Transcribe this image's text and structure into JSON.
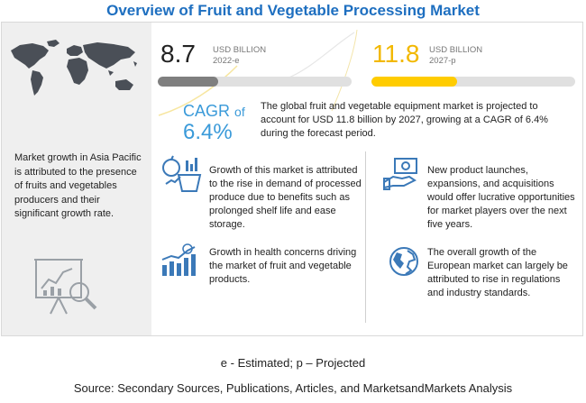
{
  "title": "Overview of Fruit and Vegetable Processing Market",
  "market_2022": {
    "value": "8.7",
    "unit": "USD BILLION",
    "year": "2022-e",
    "fill_fraction": 0.31
  },
  "market_2027": {
    "value": "11.8",
    "unit": "USD BILLION",
    "year": "2027-p",
    "fill_fraction": 0.42
  },
  "cagr": {
    "label": "CAGR",
    "of": "of",
    "value": "6.4%",
    "text": "The global fruit and vegetable equipment market is projected to account for USD 11.8 billion by 2027, growing at a CAGR of 6.4% during the forecast period."
  },
  "left_panel": {
    "text": "Market growth in Asia Pacific is attributed to the presence of fruits and vegetables producers and their significant growth rate."
  },
  "insights": [
    {
      "text": "Growth of this market is attributed to the rise in demand of processed produce due to benefits such as prolonged shelf life and ease storage."
    },
    {
      "text": "Growth in health concerns driving the market of fruit and vegetable products."
    },
    {
      "text": "New product launches, expansions, and acquisitions would offer lucrative opportunities for market players over the next five years."
    },
    {
      "text": "The overall growth of the European market can largely be attributed to rise in regulations and industry standards."
    }
  ],
  "footnote": "e - Estimated; p – Projected",
  "source": "Source: Secondary Sources, Publications, Articles, and MarketsandMarkets Analysis",
  "colors": {
    "title": "#1e6fc0",
    "accent_blue": "#3a9ad9",
    "accent_yellow": "#ffcc00",
    "bar_gray": "#7f7f7f"
  }
}
